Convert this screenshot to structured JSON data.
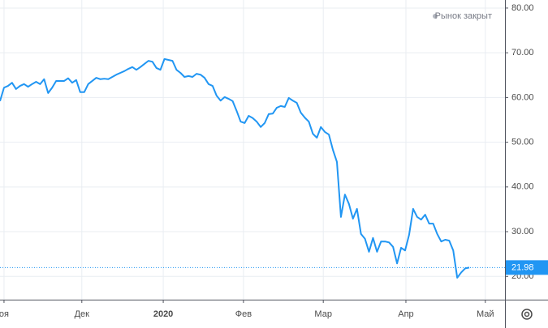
{
  "chart_data": {
    "type": "line",
    "status": "Рынок закрыт",
    "series": [
      {
        "color": "#2196f3",
        "values": [
          59.2,
          62.2,
          62.6,
          63.3,
          61.9,
          62.6,
          63.0,
          62.4,
          63.0,
          63.5,
          63.0,
          64.1,
          61.0,
          62.2,
          63.7,
          63.7,
          63.7,
          64.3,
          63.3,
          63.9,
          61.2,
          61.2,
          63.0,
          63.7,
          64.4,
          64.1,
          64.2,
          64.1,
          64.6,
          65.1,
          65.5,
          65.9,
          66.4,
          66.8,
          66.2,
          66.8,
          67.5,
          68.2,
          68.0,
          66.6,
          66.2,
          68.6,
          68.4,
          68.2,
          66.2,
          65.5,
          64.6,
          64.8,
          64.6,
          65.3,
          65.1,
          64.4,
          63.0,
          62.6,
          60.4,
          59.3,
          60.1,
          59.7,
          59.2,
          57.0,
          54.6,
          54.3,
          55.9,
          55.4,
          54.6,
          53.4,
          54.3,
          56.3,
          56.4,
          57.7,
          58.1,
          57.9,
          59.9,
          59.3,
          58.8,
          56.6,
          55.5,
          54.6,
          51.9,
          51.0,
          53.4,
          52.3,
          51.7,
          48.3,
          45.6,
          33.3,
          38.3,
          36.2,
          32.9,
          35.1,
          29.5,
          28.4,
          25.5,
          28.6,
          25.5,
          27.8,
          27.8,
          27.6,
          26.6,
          22.9,
          26.4,
          25.8,
          29.3,
          35.1,
          33.3,
          32.7,
          33.8,
          31.8,
          31.8,
          29.5,
          27.8,
          28.2,
          28.0,
          25.8,
          19.7,
          20.9,
          21.8,
          21.98
        ]
      }
    ],
    "xlim": [
      0,
      125.9
    ],
    "xticks": [
      {
        "value": 1,
        "label": "оя"
      },
      {
        "value": 20.4,
        "label": "Дек"
      },
      {
        "value": 40.7,
        "label": "2020"
      },
      {
        "value": 60.7,
        "label": "Фев"
      },
      {
        "value": 80.6,
        "label": "Мар"
      },
      {
        "value": 101.2,
        "label": "Апр"
      },
      {
        "value": 121,
        "label": "Май"
      }
    ],
    "ylim": [
      14.8,
      81.8
    ],
    "yticks": [
      {
        "value": 20,
        "label": "20.00"
      },
      {
        "value": 30,
        "label": "30.00"
      },
      {
        "value": 40,
        "label": "40.00"
      },
      {
        "value": 50,
        "label": "50.00"
      },
      {
        "value": 60,
        "label": "60.00"
      },
      {
        "value": 70,
        "label": "70.00"
      },
      {
        "value": 80,
        "label": "80.00"
      }
    ],
    "grid": true
  }
}
